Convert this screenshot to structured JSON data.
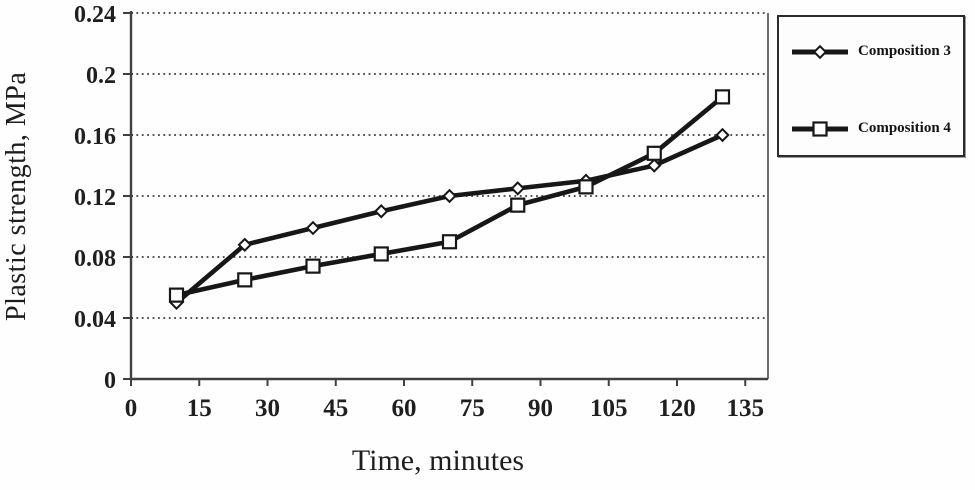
{
  "figure": {
    "background": "#ffffff",
    "ink": "#171717",
    "axis_color": "#404040",
    "grid_color": "#3d3d3d"
  },
  "y_axis": {
    "title": "Plastic strength, MPa",
    "ticks": [
      "0",
      "0.04",
      "0.08",
      "0.12",
      "0.16",
      "0.2",
      "0.24"
    ]
  },
  "x_axis": {
    "title": "Time, minutes",
    "ticks": [
      "0",
      "15",
      "30",
      "45",
      "60",
      "75",
      "90",
      "105",
      "120",
      "135"
    ]
  },
  "legend": {
    "items": [
      {
        "label": "Composition 3",
        "marker": "diamond"
      },
      {
        "label": "Composition 4",
        "marker": "square"
      }
    ]
  },
  "chart_data": {
    "type": "line",
    "title": "",
    "xlabel": "Time, minutes",
    "ylabel": "Plastic strength, MPa",
    "x": [
      10,
      25,
      40,
      55,
      70,
      85,
      100,
      115,
      130
    ],
    "series": [
      {
        "name": "Composition 3",
        "marker": "diamond",
        "values": [
          0.05,
          0.088,
          0.099,
          0.11,
          0.12,
          0.125,
          0.13,
          0.14,
          0.16
        ]
      },
      {
        "name": "Composition 4",
        "marker": "square",
        "values": [
          0.055,
          0.065,
          0.074,
          0.082,
          0.09,
          0.114,
          0.126,
          0.148,
          0.185
        ]
      }
    ],
    "xlim": [
      0,
      140
    ],
    "ylim": [
      0,
      0.24
    ],
    "x_ticks": [
      0,
      15,
      30,
      45,
      60,
      75,
      90,
      105,
      120,
      135
    ],
    "y_ticks": [
      0,
      0.04,
      0.08,
      0.12,
      0.16,
      0.2,
      0.24
    ],
    "grid": "horizontal-dotted",
    "legend_position": "outside-right",
    "line_color": "#171717",
    "marker_fill": "#ffffff"
  }
}
